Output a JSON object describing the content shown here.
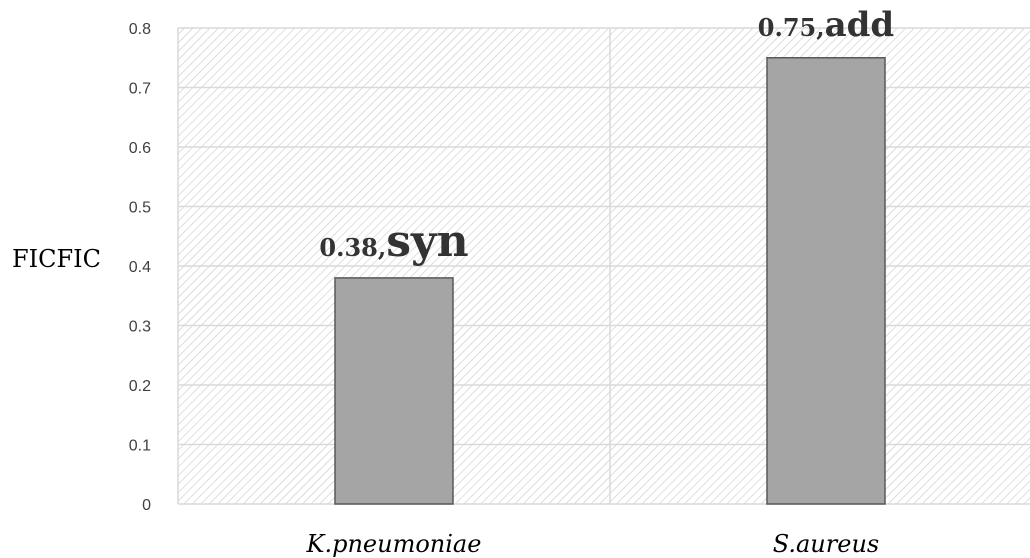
{
  "chart_data": {
    "type": "bar",
    "ylabel": "FICFIC",
    "categories": [
      "K.pneumoniae",
      "S.aureus"
    ],
    "values": [
      0.38,
      0.75
    ],
    "data_labels": [
      {
        "value": "0.38,",
        "word": "syn"
      },
      {
        "value": "0.75,",
        "word": "add"
      }
    ],
    "ylim": [
      0,
      0.8
    ],
    "yticks": [
      "0",
      "0.1",
      "0.2",
      "0.3",
      "0.4",
      "0.5",
      "0.6",
      "0.7",
      "0.8"
    ],
    "grid": true,
    "bar_color": "#a5a5a5",
    "bar_edge_color": "#595959"
  }
}
